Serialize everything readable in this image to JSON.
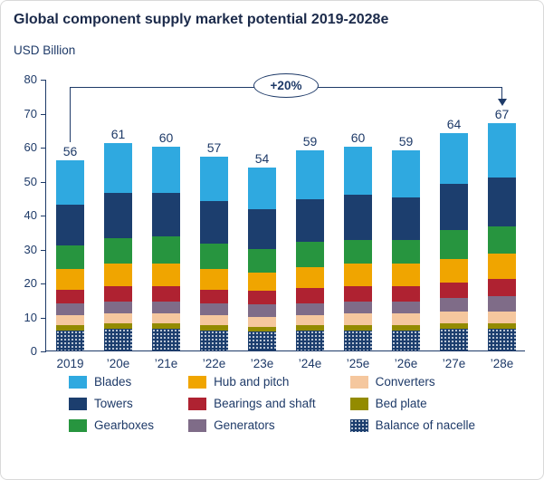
{
  "title": "Global component supply market potential 2019-2028e",
  "y_axis_title": "USD Billion",
  "colors": {
    "navy": "#1E3A68",
    "title_text": "#1B2A4A",
    "card_border": "#D9D9D9"
  },
  "chart_data": {
    "type": "bar",
    "stacked": true,
    "title": "Global component supply market potential 2019-2028e",
    "ylabel": "USD Billion",
    "xlabel": "",
    "ylim": [
      0,
      80
    ],
    "yticks": [
      0,
      10,
      20,
      30,
      40,
      50,
      60,
      70,
      80
    ],
    "grid": false,
    "legend_position": "bottom",
    "annotation": "+20%",
    "categories": [
      "2019",
      "’20e",
      "’21e",
      "’22e",
      "’23e",
      "’24e",
      "’25e",
      "’26e",
      "’27e",
      "’28e"
    ],
    "totals": [
      56,
      61,
      60,
      57,
      54,
      59,
      60,
      59,
      64,
      67
    ],
    "series_order": "bottom_to_top",
    "series": [
      {
        "name": "Balance of nacelle",
        "color": "#1C3E6E",
        "pattern": "dots",
        "values": [
          6,
          6.5,
          6.5,
          6,
          5.5,
          6,
          6,
          6,
          6.5,
          6.5
        ]
      },
      {
        "name": "Bed plate",
        "color": "#938B00",
        "values": [
          1.5,
          1.5,
          1.5,
          1.5,
          1.5,
          1.5,
          1.5,
          1.5,
          1.5,
          1.5
        ]
      },
      {
        "name": "Converters",
        "color": "#F5C79E",
        "values": [
          3,
          3,
          3,
          3,
          3,
          3,
          3.5,
          3.5,
          3.5,
          3.5
        ]
      },
      {
        "name": "Generators",
        "color": "#7F6C88",
        "values": [
          3.5,
          3.5,
          3.5,
          3.5,
          3.5,
          3.5,
          3.5,
          3.5,
          4,
          4.5
        ]
      },
      {
        "name": "Bearings and shaft",
        "color": "#AF2231",
        "values": [
          4,
          4.5,
          4.5,
          4,
          4,
          4.5,
          4.5,
          4.5,
          4.5,
          5
        ]
      },
      {
        "name": "Hub and pitch",
        "color": "#F0A500",
        "values": [
          6,
          6.5,
          6.5,
          6,
          5.5,
          6,
          6.5,
          6.5,
          7,
          7.5
        ]
      },
      {
        "name": "Gearboxes",
        "color": "#27953F",
        "values": [
          7,
          7.5,
          8,
          7.5,
          7,
          7.5,
          7,
          7,
          8.5,
          8
        ]
      },
      {
        "name": "Towers",
        "color": "#1C3E6E",
        "values": [
          12,
          13.5,
          13,
          12.5,
          11.5,
          12.5,
          13.5,
          12.5,
          13.5,
          14.5
        ]
      },
      {
        "name": "Blades",
        "color": "#2FA9E0",
        "values": [
          13,
          14.5,
          13.5,
          13,
          12.5,
          14.5,
          14,
          14,
          15,
          16
        ]
      }
    ],
    "legend_order": [
      "Blades",
      "Towers",
      "Gearboxes",
      "Hub and pitch",
      "Bearings and shaft",
      "Generators",
      "Converters",
      "Bed plate",
      "Balance of nacelle"
    ]
  }
}
